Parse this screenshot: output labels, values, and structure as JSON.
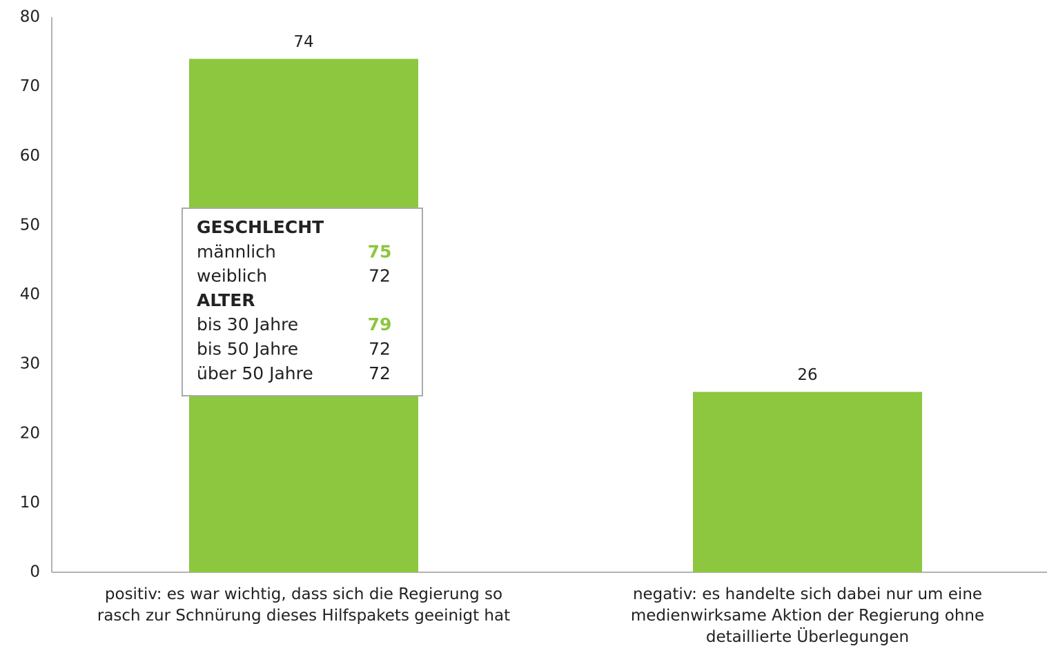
{
  "chart_data": {
    "type": "bar",
    "categories": [
      "positiv: es war wichtig, dass sich die Regierung so\nrasch zur Schnürung dieses Hilfspakets geeinigt hat",
      "negativ: es handelte sich dabei nur um eine\nmedienwirksame Aktion der Regierung ohne\ndetaillierte Überlegungen"
    ],
    "values": [
      74,
      26
    ],
    "color": "#8dc63f",
    "ylim": [
      0,
      80
    ],
    "yticks": [
      0,
      10,
      20,
      30,
      40,
      50,
      60,
      70,
      80
    ],
    "grid": false,
    "annotation": {
      "highlight_color": "#8dc63f",
      "groups": [
        {
          "title": "GESCHLECHT",
          "rows": [
            {
              "label": "männlich",
              "value": 75,
              "highlight": true
            },
            {
              "label": "weiblich",
              "value": 72,
              "highlight": false
            }
          ]
        },
        {
          "title": "ALTER",
          "rows": [
            {
              "label": "bis 30 Jahre",
              "value": 79,
              "highlight": true
            },
            {
              "label": "bis 50 Jahre",
              "value": 72,
              "highlight": false
            },
            {
              "label": "über 50 Jahre",
              "value": 72,
              "highlight": false
            }
          ]
        }
      ]
    }
  }
}
